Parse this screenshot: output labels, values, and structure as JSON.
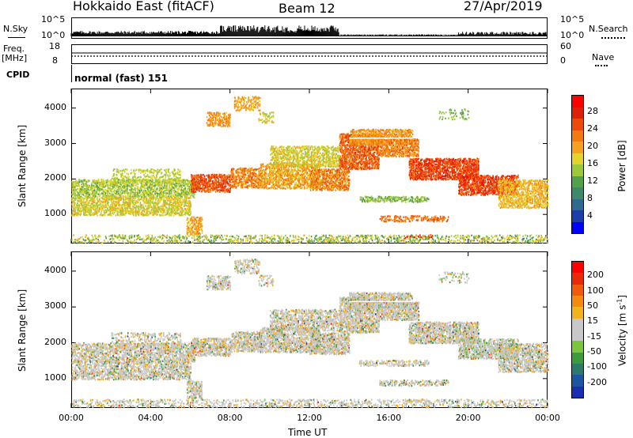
{
  "header": {
    "station": "Hokkaido East (fitACF)",
    "beam": "Beam 12",
    "date": "27/Apr/2019"
  },
  "top_panels": {
    "nsky_label": "N.Sky",
    "nsky_ticks": [
      "10^5",
      "10^0"
    ],
    "nsearch_label": "N.Search",
    "nsearch_ticks": [
      "10^5",
      "10^0"
    ],
    "freq_label": "Freq.",
    "freq_unit": "[MHz]",
    "freq_ticks": [
      "18",
      "8"
    ],
    "nave_label": "Nave",
    "nave_ticks": [
      "60",
      "0"
    ],
    "cpid_label": "CPID",
    "cpid_value": "normal (fast) 151"
  },
  "chart_data": [
    {
      "type": "heatmap",
      "name": "power-panel",
      "ylabel": "Slant Range [km]",
      "xlabel": "",
      "ylim": [
        180,
        4550
      ],
      "xlim_hours": [
        0,
        24
      ],
      "y_ticks": [
        "4000",
        "3000",
        "2000",
        "1000"
      ],
      "y_tick_values": [
        4000,
        3000,
        2000,
        1000
      ],
      "colorbar": {
        "label": "Power [dB]",
        "ticks": [
          "28",
          "24",
          "20",
          "16",
          "12",
          "8",
          "4"
        ],
        "tick_values": [
          28,
          24,
          20,
          16,
          12,
          8,
          4
        ],
        "range": [
          0,
          32
        ],
        "colors": [
          "#0000ff",
          "#1d3ea8",
          "#2f6b8e",
          "#3d8a6a",
          "#55a04a",
          "#9dc83a",
          "#e3d42b",
          "#f5a020",
          "#f27a10",
          "#ec4b0a",
          "#e01f08",
          "#ff0000"
        ]
      }
    },
    {
      "type": "heatmap",
      "name": "velocity-panel",
      "ylabel": "Slant Range [km]",
      "xlabel": "Time UT",
      "ylim": [
        180,
        4550
      ],
      "xlim_hours": [
        0,
        24
      ],
      "y_ticks": [
        "4000",
        "3000",
        "2000",
        "1000"
      ],
      "y_tick_values": [
        4000,
        3000,
        2000,
        1000
      ],
      "x_ticks": [
        "00:00",
        "04:00",
        "08:00",
        "12:00",
        "16:00",
        "20:00",
        "00:00"
      ],
      "x_tick_values": [
        0,
        4,
        8,
        12,
        16,
        20,
        24
      ],
      "colorbar": {
        "label": "Velocity [m s",
        "label_sup": "-1",
        "label_end": "]",
        "ticks": [
          "200",
          "100",
          "50",
          "15",
          "-15",
          "-50",
          "-100",
          "-200"
        ],
        "tick_values": [
          200,
          100,
          50,
          15,
          -15,
          -50,
          -100,
          -200
        ],
        "colors": [
          "#1a2fb0",
          "#1d55a0",
          "#2c7a6a",
          "#3f9a3e",
          "#7ac73e",
          "#c8c8c8",
          "#c8c8c8",
          "#f2b41e",
          "#f58a10",
          "#ef5a0c",
          "#e82a08",
          "#ff0000"
        ]
      }
    }
  ]
}
